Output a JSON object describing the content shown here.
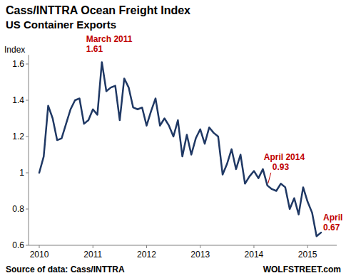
{
  "chart_data": {
    "type": "line",
    "title": "Cass/INTTRA Ocean Freight Index",
    "subtitle": "US Container Exports",
    "y_label": "Index",
    "source": "Source of data: Cass/INTTRA",
    "credit": "WOLFSTREET.com",
    "categories": [
      "2010",
      null,
      null,
      null,
      null,
      null,
      null,
      null,
      null,
      null,
      null,
      null,
      "2011",
      null,
      null,
      null,
      null,
      null,
      null,
      null,
      null,
      null,
      null,
      null,
      "2012",
      null,
      null,
      null,
      null,
      null,
      null,
      null,
      null,
      null,
      null,
      null,
      "2013",
      null,
      null,
      null,
      null,
      null,
      null,
      null,
      null,
      null,
      null,
      null,
      "2014",
      null,
      null,
      null,
      null,
      null,
      null,
      null,
      null,
      null,
      null,
      null,
      "2015",
      null,
      null,
      null
    ],
    "values": [
      1.0,
      1.09,
      1.37,
      1.3,
      1.18,
      1.19,
      1.27,
      1.35,
      1.4,
      1.41,
      1.27,
      1.29,
      1.35,
      1.32,
      1.61,
      1.45,
      1.47,
      1.48,
      1.29,
      1.52,
      1.47,
      1.36,
      1.35,
      1.36,
      1.26,
      1.34,
      1.41,
      1.26,
      1.3,
      1.26,
      1.2,
      1.29,
      1.09,
      1.21,
      1.1,
      1.19,
      1.24,
      1.16,
      1.25,
      1.22,
      1.2,
      0.99,
      1.05,
      1.13,
      1.02,
      1.1,
      0.94,
      0.98,
      1.01,
      0.97,
      1.02,
      0.93,
      0.91,
      0.9,
      0.94,
      0.92,
      0.8,
      0.86,
      0.77,
      0.92,
      0.84,
      0.78,
      0.65,
      0.67
    ],
    "color": "#1f3864",
    "ylim": [
      0.6,
      1.65
    ],
    "yticks": [
      0.6,
      0.8,
      1,
      1.2,
      1.4,
      1.6
    ],
    "grid": false,
    "annotations": [
      {
        "label": "March 2011",
        "value": 1.61
      },
      {
        "label": "April 2014",
        "value": 0.93
      },
      {
        "label": "April",
        "value": 0.67
      }
    ]
  }
}
